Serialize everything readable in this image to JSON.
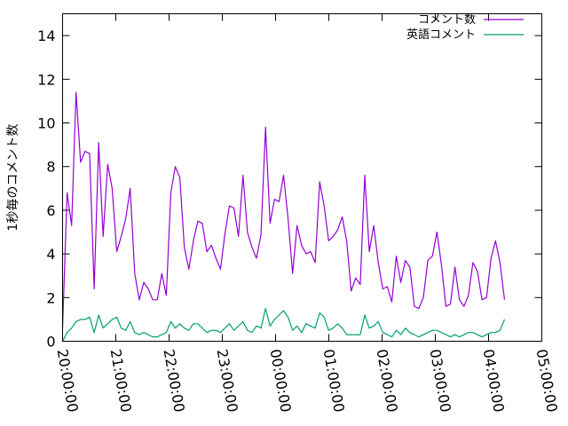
{
  "chart_data": {
    "type": "line",
    "title": "",
    "xlabel": "",
    "ylabel": "1秒毎のコメント数",
    "ylim": [
      0,
      15
    ],
    "xlim": [
      "20:00:00",
      "05:00:00"
    ],
    "yticks": [
      0,
      2,
      4,
      6,
      8,
      10,
      12,
      14
    ],
    "xticks": [
      "20:00:00",
      "21:00:00",
      "22:00:00",
      "23:00:00",
      "00:00:00",
      "01:00:00",
      "02:00:00",
      "03:00:00",
      "04:00:00",
      "05:00:00"
    ],
    "x_start": "20:00:00",
    "x_end": "04:18:00",
    "sample_interval_minutes": 5,
    "legend_position": "top-right",
    "grid": false,
    "series": [
      {
        "name": "コメント数",
        "color": "#9400d3",
        "values": [
          0.6,
          6.8,
          5.3,
          11.4,
          8.2,
          8.7,
          8.6,
          2.4,
          9.1,
          4.8,
          8.1,
          7.0,
          4.1,
          4.8,
          5.6,
          7.0,
          3.1,
          1.9,
          2.7,
          2.4,
          1.9,
          1.9,
          3.1,
          2.1,
          6.8,
          8.0,
          7.5,
          4.3,
          3.3,
          4.6,
          5.5,
          5.4,
          4.1,
          4.4,
          3.8,
          3.3,
          4.9,
          6.2,
          6.1,
          4.8,
          7.6,
          5.0,
          4.3,
          3.8,
          4.9,
          9.8,
          5.4,
          6.5,
          6.4,
          7.6,
          5.6,
          3.1,
          5.3,
          4.4,
          4.0,
          4.1,
          3.6,
          7.3,
          6.2,
          4.6,
          4.8,
          5.1,
          5.7,
          4.6,
          2.3,
          2.9,
          2.6,
          7.6,
          4.1,
          5.3,
          3.6,
          2.4,
          2.5,
          1.8,
          3.9,
          2.7,
          3.7,
          3.4,
          1.6,
          1.5,
          2.0,
          3.7,
          3.9,
          5.0,
          3.5,
          1.6,
          1.7,
          3.4,
          1.9,
          1.6,
          2.1,
          3.6,
          3.2,
          1.9,
          2.0,
          3.8,
          4.6,
          3.6,
          1.9
        ]
      },
      {
        "name": "英語コメント",
        "color": "#009e73",
        "values": [
          0.0,
          0.4,
          0.6,
          0.9,
          1.0,
          1.0,
          1.1,
          0.4,
          1.2,
          0.6,
          0.8,
          1.0,
          1.1,
          0.6,
          0.5,
          0.9,
          0.4,
          0.3,
          0.4,
          0.3,
          0.2,
          0.2,
          0.3,
          0.4,
          0.9,
          0.6,
          0.8,
          0.6,
          0.5,
          0.8,
          0.8,
          0.6,
          0.4,
          0.5,
          0.5,
          0.4,
          0.6,
          0.8,
          0.5,
          0.7,
          0.9,
          0.5,
          0.4,
          0.7,
          0.6,
          1.5,
          0.7,
          1.0,
          1.2,
          1.4,
          1.1,
          0.5,
          0.7,
          0.4,
          0.8,
          0.7,
          0.6,
          1.3,
          1.1,
          0.5,
          0.6,
          0.8,
          0.6,
          0.3,
          0.3,
          0.3,
          0.3,
          1.2,
          0.6,
          0.7,
          0.9,
          0.4,
          0.3,
          0.2,
          0.5,
          0.3,
          0.6,
          0.4,
          0.3,
          0.2,
          0.3,
          0.4,
          0.5,
          0.5,
          0.4,
          0.3,
          0.2,
          0.3,
          0.2,
          0.3,
          0.4,
          0.4,
          0.3,
          0.2,
          0.3,
          0.4,
          0.4,
          0.5,
          1.0
        ]
      }
    ]
  }
}
